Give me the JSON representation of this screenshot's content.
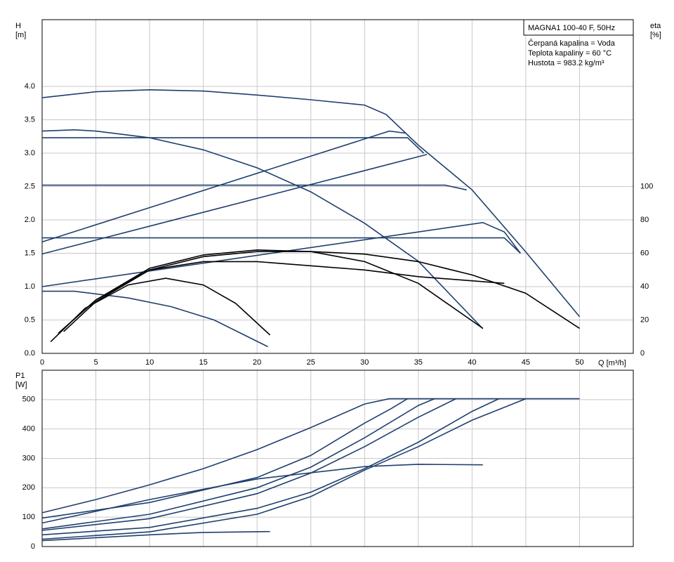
{
  "chart_data": [
    {
      "type": "line",
      "y_label": "H",
      "y_unit": "[m]",
      "y2_label": "eta",
      "y2_unit": "[%]",
      "x_label": "Q [m³/h]",
      "info_title": "MAGNA1 100-40 F, 50Hz",
      "info_lines": [
        "Čerpaná kapalina = Voda",
        "Teplota kapaliny = 60 °C",
        "Hustota = 983.2 kg/m³"
      ],
      "xlim": [
        0,
        55
      ],
      "xticks": [
        0,
        5,
        10,
        15,
        20,
        25,
        30,
        35,
        40,
        45,
        50
      ],
      "ylim": [
        0,
        5
      ],
      "yticks": [
        {
          "value": 0,
          "label": "0.0"
        },
        0.5,
        {
          "value": 1,
          "label": "1.0"
        },
        1.5,
        {
          "value": 2,
          "label": "2.0"
        },
        2.5,
        {
          "value": 3,
          "label": "3.0"
        },
        3.5,
        {
          "value": 4,
          "label": "4.0"
        }
      ],
      "y2lim": [
        0,
        200
      ],
      "y2ticks": [
        0,
        20,
        40,
        60,
        80,
        100
      ],
      "grid": true,
      "series": [
        {
          "color": "#1f3f6e",
          "x": [
            0,
            5,
            10,
            15,
            20,
            25,
            30,
            32,
            35,
            40,
            45,
            50
          ],
          "values": [
            3.83,
            3.92,
            3.95,
            3.93,
            3.87,
            3.8,
            3.72,
            3.58,
            3.12,
            2.45,
            1.52,
            0.55
          ]
        },
        {
          "color": "#1f3f6e",
          "x": [
            0,
            3,
            5,
            10,
            15,
            20,
            25,
            30,
            35,
            41
          ],
          "values": [
            3.33,
            3.35,
            3.33,
            3.23,
            3.05,
            2.78,
            2.42,
            1.95,
            1.38,
            0.37
          ]
        },
        {
          "color": "#1f3f6e",
          "x": [
            0,
            34,
            35.5
          ],
          "values": [
            3.23,
            3.23,
            3.0
          ]
        },
        {
          "color": "#1f3f6e",
          "x": [
            0,
            37.5,
            39.5
          ],
          "values": [
            2.52,
            2.52,
            2.45
          ]
        },
        {
          "color": "#1f3f6e",
          "x": [
            0,
            43,
            44.5
          ],
          "values": [
            1.73,
            1.73,
            1.5
          ]
        },
        {
          "color": "#1f3f6e",
          "x": [
            0,
            32.3,
            33.8
          ],
          "values": [
            1.67,
            3.33,
            3.3
          ]
        },
        {
          "color": "#1f3f6e",
          "x": [
            0,
            35.8
          ],
          "values": [
            1.49,
            2.98
          ]
        },
        {
          "color": "#1f3f6e",
          "x": [
            0,
            41,
            43,
            44.5
          ],
          "values": [
            1.0,
            1.96,
            1.82,
            1.5
          ]
        },
        {
          "color": "#1f3f6e",
          "x": [
            0,
            3,
            8,
            12,
            16,
            21
          ],
          "values": [
            0.93,
            0.93,
            0.83,
            0.7,
            0.5,
            0.1
          ]
        },
        {
          "color": "#000000",
          "axis": "y2",
          "x": [
            1.5,
            5,
            10,
            15,
            20,
            25,
            30,
            35,
            40,
            45,
            50
          ],
          "values": [
            12,
            32,
            50,
            58,
            61,
            61,
            59.5,
            55,
            47,
            36,
            15
          ]
        },
        {
          "color": "#000000",
          "axis": "y2",
          "x": [
            1.5,
            5,
            10,
            15,
            20,
            25,
            30,
            35,
            41
          ],
          "values": [
            12,
            32,
            51,
            59,
            62,
            61,
            55,
            42,
            15
          ]
        },
        {
          "color": "#000000",
          "axis": "y2",
          "x": [
            2,
            5,
            10,
            15,
            20,
            30,
            35,
            43
          ],
          "values": [
            13,
            31,
            50,
            55,
            55,
            50,
            46,
            42
          ]
        },
        {
          "color": "#000000",
          "axis": "y2",
          "x": [
            0.8,
            4,
            8,
            11.5,
            15,
            18,
            21.2
          ],
          "values": [
            7,
            27,
            41,
            45,
            41,
            30,
            11
          ]
        }
      ]
    },
    {
      "type": "line",
      "y_label": "P1",
      "y_unit": "[W]",
      "xlim": [
        0,
        55
      ],
      "ylim": [
        0,
        600
      ],
      "yticks": [
        0,
        100,
        200,
        300,
        400,
        500
      ],
      "grid": true,
      "series": [
        {
          "color": "#1f3f6e",
          "x": [
            0,
            5,
            10,
            15,
            20,
            25,
            30,
            32.3,
            50
          ],
          "values": [
            115,
            160,
            210,
            265,
            330,
            405,
            485,
            503,
            503
          ]
        },
        {
          "color": "#1f3f6e",
          "x": [
            0,
            10,
            20,
            25,
            30,
            32.5,
            34
          ],
          "values": [
            97,
            150,
            235,
            310,
            420,
            470,
            503
          ]
        },
        {
          "color": "#1f3f6e",
          "x": [
            0,
            10,
            20,
            25,
            30,
            35,
            36.5
          ],
          "values": [
            60,
            110,
            200,
            270,
            370,
            480,
            503
          ]
        },
        {
          "color": "#1f3f6e",
          "x": [
            0,
            10,
            20,
            25,
            30,
            35,
            38.5
          ],
          "values": [
            55,
            95,
            180,
            250,
            340,
            440,
            503
          ]
        },
        {
          "color": "#1f3f6e",
          "x": [
            0,
            10,
            20,
            25,
            30,
            35,
            40,
            42.5
          ],
          "values": [
            40,
            65,
            130,
            185,
            265,
            355,
            460,
            503
          ]
        },
        {
          "color": "#1f3f6e",
          "x": [
            0,
            10,
            20,
            25,
            30,
            35,
            40,
            45
          ],
          "values": [
            25,
            50,
            110,
            170,
            260,
            340,
            430,
            503
          ]
        },
        {
          "color": "#1f3f6e",
          "x": [
            0,
            10,
            20,
            30,
            35,
            41
          ],
          "values": [
            80,
            160,
            230,
            272,
            280,
            278
          ]
        },
        {
          "color": "#1f3f6e",
          "x": [
            0,
            10,
            15,
            21.2
          ],
          "values": [
            20,
            40,
            48,
            51
          ]
        }
      ]
    }
  ]
}
